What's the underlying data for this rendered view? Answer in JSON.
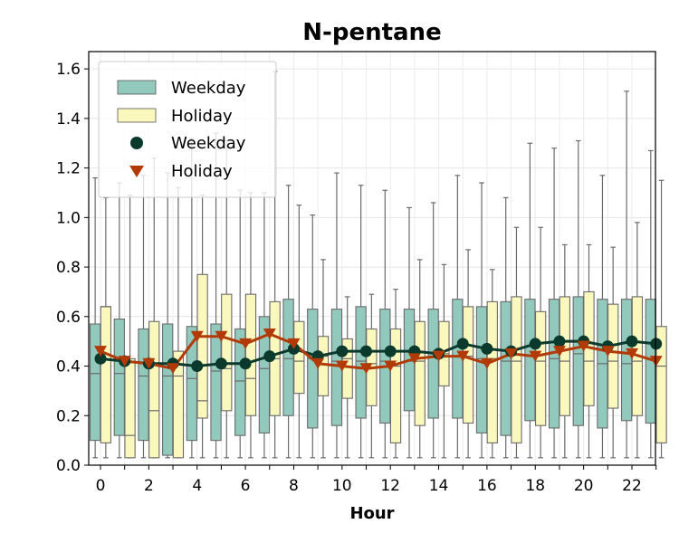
{
  "chart_data": {
    "type": "box",
    "title": "N-pentane",
    "xlabel": "Hour",
    "ylabel": "",
    "ylim": [
      0,
      1.67
    ],
    "yticks": [
      "0.0",
      "0.2",
      "0.4",
      "0.6",
      "0.8",
      "1.0",
      "1.2",
      "1.4",
      "1.6"
    ],
    "xticks": [
      "0",
      "2",
      "4",
      "6",
      "8",
      "10",
      "12",
      "14",
      "16",
      "18",
      "20",
      "22"
    ],
    "grid": true,
    "legend_position": "upper-left",
    "legend": {
      "box_weekday": "Weekday",
      "box_holiday": "Holiday",
      "marker_weekday": "Weekday",
      "marker_holiday": "Holiday"
    },
    "colors": {
      "weekday_box": "#92c9bd",
      "holiday_box": "#fbf8bd",
      "weekday_line": "#0b3a2c",
      "holiday_line": "#b23a06",
      "whisker": "#6b6b6b"
    },
    "hours": [
      0,
      1,
      2,
      3,
      4,
      5,
      6,
      7,
      8,
      9,
      10,
      11,
      12,
      13,
      14,
      15,
      16,
      17,
      18,
      19,
      20,
      21,
      22,
      23
    ],
    "series": [
      {
        "name": "Weekday",
        "q1": [
          0.1,
          0.12,
          0.1,
          0.04,
          0.1,
          0.1,
          0.12,
          0.13,
          0.2,
          0.15,
          0.16,
          0.19,
          0.17,
          0.22,
          0.19,
          0.19,
          0.13,
          0.12,
          0.18,
          0.15,
          0.16,
          0.15,
          0.18,
          0.17
        ],
        "median": [
          0.37,
          0.37,
          0.36,
          0.36,
          0.35,
          0.38,
          0.34,
          0.39,
          0.43,
          0.43,
          0.42,
          0.42,
          0.42,
          0.42,
          0.44,
          0.44,
          0.43,
          0.42,
          0.44,
          0.43,
          0.45,
          0.41,
          0.41,
          0.43
        ],
        "q3": [
          0.57,
          0.59,
          0.55,
          0.57,
          0.56,
          0.57,
          0.55,
          0.6,
          0.67,
          0.63,
          0.63,
          0.64,
          0.63,
          0.63,
          0.63,
          0.67,
          0.64,
          0.66,
          0.67,
          0.67,
          0.68,
          0.67,
          0.67,
          0.67
        ],
        "whisker_low": [
          0.03,
          0.03,
          0.03,
          0.03,
          0.03,
          0.03,
          0.03,
          0.03,
          0.03,
          0.03,
          0.03,
          0.03,
          0.03,
          0.03,
          0.03,
          0.03,
          0.03,
          0.03,
          0.03,
          0.03,
          0.03,
          0.03,
          0.03,
          0.03
        ],
        "whisker_high": [
          1.16,
          1.14,
          1.17,
          1.18,
          1.32,
          1.34,
          1.11,
          1.1,
          1.13,
          1.01,
          1.18,
          1.13,
          1.11,
          1.04,
          1.06,
          1.17,
          1.14,
          1.08,
          1.3,
          1.28,
          1.31,
          1.17,
          1.51,
          1.27
        ],
        "mean": [
          0.43,
          0.42,
          0.41,
          0.41,
          0.4,
          0.41,
          0.41,
          0.44,
          0.47,
          0.44,
          0.46,
          0.46,
          0.46,
          0.46,
          0.45,
          0.49,
          0.47,
          0.46,
          0.49,
          0.5,
          0.5,
          0.48,
          0.5,
          0.49
        ]
      },
      {
        "name": "Holiday",
        "q1": [
          0.09,
          0.03,
          0.03,
          0.03,
          0.19,
          0.22,
          0.2,
          0.2,
          0.29,
          0.28,
          0.27,
          0.24,
          0.09,
          0.16,
          0.32,
          0.17,
          0.09,
          0.09,
          0.16,
          0.2,
          0.24,
          0.23,
          0.2,
          0.09
        ],
        "median": [
          0.64,
          0.12,
          0.22,
          0.36,
          0.26,
          0.39,
          0.35,
          0.43,
          0.42,
          0.44,
          0.43,
          0.41,
          0.4,
          0.42,
          0.45,
          0.44,
          0.43,
          0.42,
          0.42,
          0.42,
          0.42,
          0.42,
          0.42,
          0.4
        ],
        "q3": [
          0.64,
          0.43,
          0.58,
          0.46,
          0.77,
          0.69,
          0.69,
          0.66,
          0.58,
          0.52,
          0.51,
          0.55,
          0.55,
          0.58,
          0.58,
          0.64,
          0.66,
          0.68,
          0.62,
          0.68,
          0.7,
          0.65,
          0.68,
          0.56
        ],
        "whisker_low": [
          0.03,
          0.03,
          0.03,
          0.03,
          0.03,
          0.03,
          0.03,
          0.03,
          0.03,
          0.03,
          0.03,
          0.03,
          0.03,
          0.03,
          0.03,
          0.03,
          0.03,
          0.03,
          0.03,
          0.03,
          0.03,
          0.03,
          0.03,
          0.03
        ],
        "whisker_high": [
          1.08,
          1.09,
          1.24,
          1.12,
          1.09,
          1.31,
          1.1,
          1.59,
          1.05,
          0.83,
          0.68,
          0.69,
          0.71,
          0.83,
          0.81,
          0.87,
          0.79,
          0.96,
          0.96,
          0.89,
          0.89,
          0.88,
          0.98,
          1.15
        ],
        "mean": [
          0.46,
          0.42,
          0.41,
          0.39,
          0.52,
          0.52,
          0.49,
          0.53,
          0.49,
          0.41,
          0.4,
          0.39,
          0.4,
          0.43,
          0.44,
          0.44,
          0.41,
          0.45,
          0.44,
          0.46,
          0.48,
          0.46,
          0.45,
          0.42
        ]
      }
    ]
  }
}
